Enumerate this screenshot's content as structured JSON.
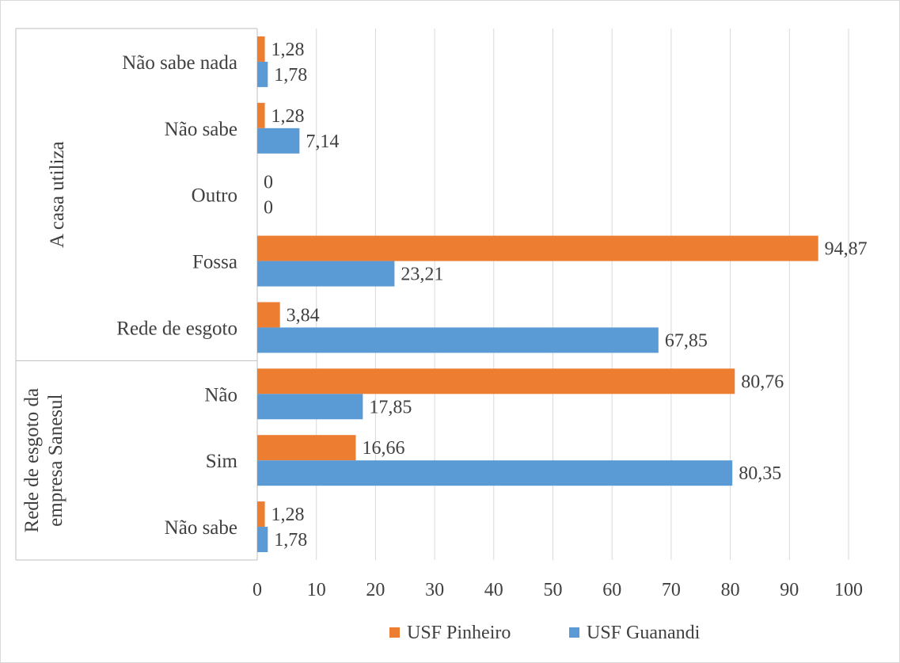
{
  "chart_data": {
    "type": "bar",
    "orientation": "horizontal",
    "groups": [
      {
        "name": "A casa utiliza",
        "categories": [
          "Não sabe nada",
          "Não sabe",
          "Outro",
          "Fossa",
          "Rede de esgoto"
        ]
      },
      {
        "name": "Rede de esgoto da empresa Sanesul",
        "categories": [
          "Não",
          "Sim",
          "Não sabe"
        ]
      }
    ],
    "categories": [
      "Não sabe nada",
      "Não sabe",
      "Outro",
      "Fossa",
      "Rede de esgoto",
      "Não",
      "Sim",
      "Não sabe"
    ],
    "series": [
      {
        "name": "USF Pinheiro",
        "color": "#ED7D31",
        "values": [
          1.28,
          1.28,
          0,
          94.87,
          3.84,
          80.76,
          16.66,
          1.28
        ],
        "labels": [
          "1,28",
          "1,28",
          "0",
          "94,87",
          "3,84",
          "80,76",
          "16,66",
          "1,28"
        ]
      },
      {
        "name": "USF Guanandi",
        "color": "#5B9BD5",
        "values": [
          1.78,
          7.14,
          0,
          23.21,
          67.85,
          17.85,
          80.35,
          1.78
        ],
        "labels": [
          "1,78",
          "7,14",
          "0",
          "23,21",
          "67,85",
          "17,85",
          "80,35",
          "1,78"
        ]
      }
    ],
    "xlim": [
      0,
      100
    ],
    "xticks": [
      "0",
      "10",
      "20",
      "30",
      "40",
      "50",
      "60",
      "70",
      "80",
      "90",
      "100"
    ],
    "grid": true,
    "legend": "bottom"
  }
}
